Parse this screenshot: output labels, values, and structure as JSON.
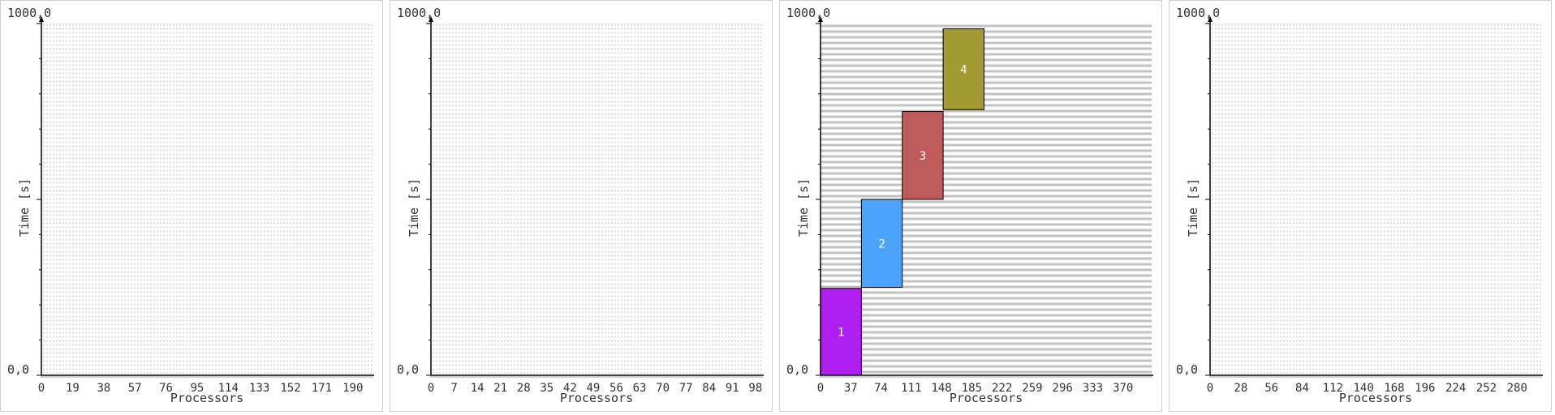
{
  "chart_data": [
    {
      "type": "bar",
      "ylabel": "Time [s]",
      "xlabel": "Processors",
      "y_top_label": "1000,0",
      "y_bottom_label": "0,0",
      "ylim": [
        0,
        1000
      ],
      "xlim": [
        0,
        202
      ],
      "x_ticks": [
        0,
        19,
        38,
        57,
        76,
        95,
        114,
        133,
        152,
        171,
        190
      ],
      "grid": "vertical-dashed",
      "colors": {},
      "jobs": []
    },
    {
      "type": "bar",
      "ylabel": "Time [s]",
      "xlabel": "Processors",
      "y_top_label": "1000,0",
      "y_bottom_label": "0,0",
      "ylim": [
        0,
        1000
      ],
      "xlim": [
        0,
        100
      ],
      "x_ticks": [
        0,
        7,
        14,
        21,
        28,
        35,
        42,
        49,
        56,
        63,
        70,
        77,
        84,
        91,
        98
      ],
      "grid": "vertical-dashed",
      "colors": {},
      "jobs": []
    },
    {
      "type": "bar",
      "ylabel": "Time [s]",
      "xlabel": "Processors",
      "y_top_label": "1000,0",
      "y_bottom_label": "0,0",
      "ylim": [
        0,
        1000
      ],
      "xlim": [
        0,
        405
      ],
      "x_ticks": [
        0,
        37,
        74,
        111,
        148,
        185,
        222,
        259,
        296,
        333,
        370
      ],
      "grid": "horizontal-dashed",
      "colors": {
        "1": "#b01ef0",
        "2": "#4da3fa",
        "3": "#bd5a5a",
        "4": "#a39a33"
      },
      "jobs": [
        {
          "label": "1",
          "x0": 0,
          "x1": 50,
          "y0": 0,
          "y1": 247
        },
        {
          "label": "2",
          "x0": 50,
          "x1": 100,
          "y0": 250,
          "y1": 500
        },
        {
          "label": "3",
          "x0": 100,
          "x1": 150,
          "y0": 500,
          "y1": 750
        },
        {
          "label": "4",
          "x0": 150,
          "x1": 200,
          "y0": 755,
          "y1": 985
        }
      ]
    },
    {
      "type": "bar",
      "ylabel": "Time [s]",
      "xlabel": "Processors",
      "y_top_label": "1000,0",
      "y_bottom_label": "0,0",
      "ylim": [
        0,
        1000
      ],
      "xlim": [
        0,
        302
      ],
      "x_ticks": [
        0,
        28,
        56,
        84,
        112,
        140,
        168,
        196,
        224,
        252,
        280
      ],
      "grid": "vertical-dashed",
      "colors": {},
      "jobs": []
    }
  ]
}
